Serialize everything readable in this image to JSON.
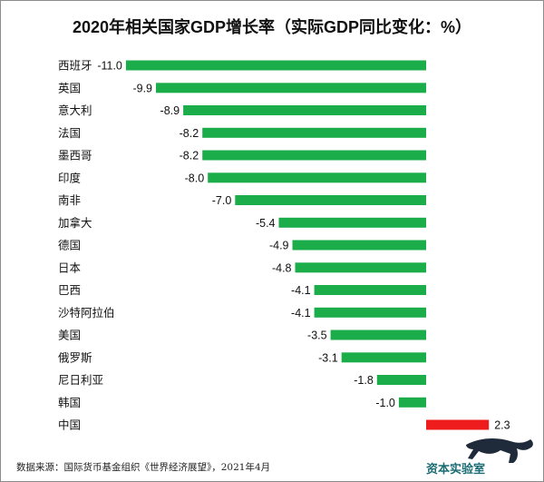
{
  "chart_data": {
    "type": "bar",
    "orientation": "horizontal",
    "title": "2020年相关国家GDP增长率（实际GDP同比变化：%）",
    "categories": [
      "西班牙",
      "英国",
      "意大利",
      "法国",
      "墨西哥",
      "印度",
      "南非",
      "加拿大",
      "德国",
      "日本",
      "巴西",
      "沙特阿拉伯",
      "美国",
      "俄罗斯",
      "尼日利亚",
      "韩国",
      "中国"
    ],
    "values": [
      -11.0,
      -9.9,
      -8.9,
      -8.2,
      -8.2,
      -8.0,
      -7.0,
      -5.4,
      -4.9,
      -4.8,
      -4.1,
      -4.1,
      -3.5,
      -3.1,
      -1.8,
      -1.0,
      2.3
    ],
    "value_labels": [
      "-11.0",
      "-9.9",
      "-8.9",
      "-8.2",
      "-8.2",
      "-8.0",
      "-7.0",
      "-5.4",
      "-4.9",
      "-4.8",
      "-4.1",
      "-4.1",
      "-3.5",
      "-3.1",
      "-1.8",
      "-1.0",
      "2.3"
    ],
    "xlim": [
      -12,
      2.5
    ],
    "xlabel": "",
    "ylabel": "",
    "grid": false,
    "legend": "none",
    "colors": {
      "negative": "#1cad4b",
      "positive": "#ee1c1c"
    }
  },
  "source_note": "数据来源：国际货币基金组织《世界经济展望》，2021年4月",
  "logo": {
    "text": "资本实验室",
    "color": "#1b6c74"
  }
}
